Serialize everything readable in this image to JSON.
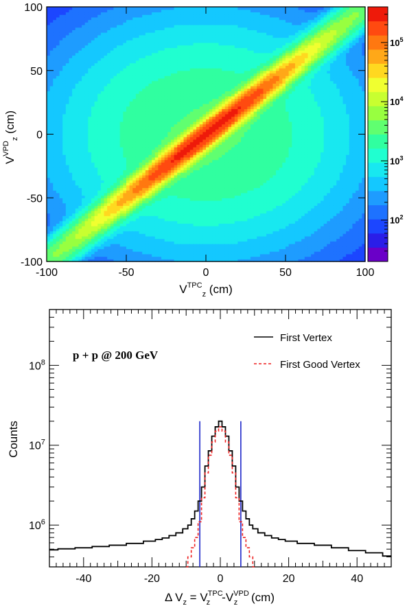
{
  "chart_data": [
    {
      "type": "heatmap",
      "xlabel": {
        "base": "V",
        "sub": "z",
        "sup": "TPC",
        "unit": " (cm)"
      },
      "ylabel": {
        "base": "V",
        "sub": "z",
        "sup": "VPD",
        "unit": " (cm)"
      },
      "xlim": [
        -100,
        100
      ],
      "ylim": [
        -100,
        100
      ],
      "x_ticks": [
        -100,
        -50,
        0,
        50,
        100
      ],
      "y_ticks": [
        -100,
        -50,
        0,
        50,
        100
      ],
      "x_tick_labels": [
        "-100",
        "-50",
        "0",
        "50",
        "100"
      ],
      "y_tick_labels": [
        "-100",
        "-50",
        "0",
        "50",
        "100"
      ],
      "colorbar": {
        "scale": "log",
        "zlim": [
          20,
          400000
        ],
        "tick_labels": [
          {
            "base": "10",
            "exp": "2",
            "value": 100
          },
          {
            "base": "10",
            "exp": "3",
            "value": 1000
          },
          {
            "base": "10",
            "exp": "4",
            "value": 10000
          },
          {
            "base": "10",
            "exp": "5",
            "value": 100000
          }
        ],
        "palette": [
          "#6a00c8",
          "#2a1ee8",
          "#1c46ff",
          "#1e72ff",
          "#1e9cff",
          "#14c8ff",
          "#18e8f0",
          "#20ffd0",
          "#30ffa0",
          "#60ff70",
          "#98ff40",
          "#c8ff30",
          "#f0ff30",
          "#ffd820",
          "#ffa818",
          "#ff7810",
          "#ff4a10",
          "#ee1a0a"
        ]
      },
      "description_components": {
        "diagonal_peak_z": 300000,
        "background_center_z": 3000,
        "background_corner_z": 40
      }
    },
    {
      "type": "line",
      "annotation": "p + p @ 200 GeV",
      "xlabel": {
        "prefix": "Δ V",
        "sub1": "z",
        "mid": " = V",
        "sub2": "z",
        "sup2": "TPC",
        "dash": "-V",
        "sub3": "z",
        "sup3": "VPD",
        "unit": " (cm)"
      },
      "ylabel": "Counts",
      "xlim": [
        -50,
        50
      ],
      "ylim": [
        300000,
        500000000
      ],
      "y_scale": "log",
      "x_ticks": [
        -40,
        -20,
        0,
        20,
        40
      ],
      "x_tick_labels": [
        "-40",
        "-20",
        "0",
        "20",
        "40"
      ],
      "y_ticks": [
        {
          "base": "10",
          "exp": "6",
          "value": 1000000
        },
        {
          "base": "10",
          "exp": "7",
          "value": 10000000
        },
        {
          "base": "10",
          "exp": "8",
          "value": 100000000
        }
      ],
      "cut_lines_x": [
        -6,
        6
      ],
      "cut_line_color": "#1a24c8",
      "series": [
        {
          "name": "First Vertex",
          "color": "#000000",
          "style": "solid-step",
          "x": [
            -50,
            -45,
            -40,
            -35,
            -30,
            -25,
            -20,
            -18,
            -16,
            -14,
            -12,
            -10,
            -9,
            -8,
            -7,
            -6,
            -5,
            -4,
            -3,
            -2,
            -1,
            0,
            1,
            2,
            3,
            4,
            5,
            6,
            7,
            8,
            9,
            10,
            12,
            14,
            16,
            18,
            20,
            25,
            30,
            35,
            40,
            45,
            50
          ],
          "y": [
            490000,
            505000,
            520000,
            540000,
            560000,
            590000,
            630000,
            660000,
            690000,
            740000,
            800000,
            900000,
            1000000,
            1200000,
            1500000,
            2000000,
            3000000,
            5500000,
            8500000,
            13000000,
            17000000,
            20000000,
            17000000,
            13000000,
            8500000,
            5500000,
            3000000,
            2000000,
            1500000,
            1200000,
            1000000,
            900000,
            800000,
            740000,
            690000,
            660000,
            630000,
            590000,
            560000,
            520000,
            480000,
            450000,
            410000
          ]
        },
        {
          "name": "First Good Vertex",
          "color": "#ee1c1c",
          "style": "dashed-step",
          "x": [
            -10,
            -9,
            -8,
            -7,
            -6,
            -5,
            -4,
            -3,
            -2,
            -1,
            0,
            1,
            2,
            3,
            4,
            5,
            6,
            7,
            8,
            9,
            10
          ],
          "y": [
            300000,
            400000,
            520000,
            700000,
            1100000,
            2200000,
            4500000,
            7500000,
            11000000,
            15000000,
            17000000,
            15000000,
            11000000,
            7500000,
            4500000,
            2200000,
            1100000,
            700000,
            520000,
            400000,
            300000
          ]
        }
      ],
      "legend_position": "top-right"
    }
  ]
}
